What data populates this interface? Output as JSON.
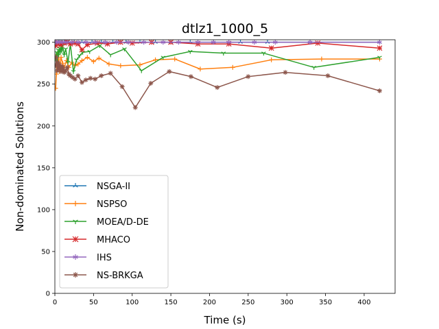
{
  "chart_data": {
    "type": "line",
    "title": "dtlz1_1000_5",
    "xlabel": "Time (s)",
    "ylabel": "Non-dominated Solutions",
    "xlim": [
      0,
      440
    ],
    "ylim": [
      0,
      303
    ],
    "xticks": [
      0,
      50,
      100,
      150,
      200,
      250,
      300,
      350,
      400
    ],
    "yticks": [
      0,
      50,
      100,
      150,
      200,
      250,
      300
    ],
    "legend_position": "lower left",
    "grid": false,
    "series": [
      {
        "name": "NSGA-II",
        "color": "#1f77b4",
        "marker": "tri-up",
        "x": [
          1,
          3,
          5,
          8,
          12,
          18,
          25,
          35,
          48,
          60,
          75,
          92,
          110,
          130,
          150,
          175,
          205,
          240,
          275,
          330,
          420
        ],
        "y": [
          297,
          299,
          300,
          300,
          300,
          300,
          300,
          300,
          300,
          300,
          300,
          300,
          300,
          300,
          300,
          300,
          300,
          300,
          300,
          300,
          300
        ]
      },
      {
        "name": "NSPSO",
        "color": "#ff7f0e",
        "marker": "plus",
        "x": [
          1,
          2,
          3,
          4,
          5,
          6,
          8,
          10,
          12,
          15,
          18,
          22,
          26,
          30,
          35,
          42,
          50,
          57,
          70,
          85,
          110,
          130,
          155,
          188,
          230,
          280,
          345,
          420
        ],
        "y": [
          245,
          262,
          285,
          270,
          280,
          265,
          282,
          275,
          270,
          278,
          270,
          276,
          272,
          274,
          278,
          282,
          277,
          281,
          274,
          272,
          273,
          279,
          280,
          268,
          270,
          279,
          280,
          280
        ]
      },
      {
        "name": "MOEA/D-DE",
        "color": "#2ca02c",
        "marker": "tri-down",
        "x": [
          1,
          2,
          3,
          4,
          5,
          6,
          7,
          8,
          9,
          10,
          12,
          14,
          17,
          20,
          24,
          28,
          32,
          36,
          45,
          58,
          72,
          90,
          112,
          140,
          175,
          218,
          270,
          335,
          420
        ],
        "y": [
          280,
          288,
          272,
          291,
          285,
          293,
          288,
          295,
          290,
          296,
          285,
          292,
          276,
          298,
          265,
          279,
          284,
          288,
          289,
          296,
          285,
          292,
          266,
          282,
          289,
          287,
          287,
          270,
          282
        ]
      },
      {
        "name": "MHACO",
        "color": "#d62728",
        "marker": "x",
        "x": [
          1,
          3,
          5,
          8,
          12,
          16,
          20,
          25,
          30,
          35,
          42,
          55,
          68,
          85,
          100,
          125,
          150,
          185,
          225,
          280,
          340,
          420
        ],
        "y": [
          296,
          298,
          299,
          297,
          299,
          300,
          298,
          299,
          298,
          291,
          297,
          299,
          298,
          300,
          299,
          300,
          300,
          298,
          298,
          293,
          299,
          293
        ]
      },
      {
        "name": "IHS",
        "color": "#9467bd",
        "marker": "star",
        "x": [
          1,
          3,
          6,
          10,
          15,
          22,
          30,
          40,
          52,
          65,
          80,
          95,
          115,
          140,
          160,
          185,
          205,
          225,
          258,
          285,
          330,
          420
        ],
        "y": [
          300,
          300,
          300,
          300,
          300,
          300,
          300,
          300,
          300,
          300,
          300,
          300,
          300,
          300,
          300,
          300,
          300,
          300,
          300,
          300,
          300,
          300
        ]
      },
      {
        "name": "NS-BRKGA",
        "color": "#8c564b",
        "marker": "asterisk",
        "x": [
          1,
          2,
          3,
          4,
          5,
          6,
          7,
          8,
          9,
          10,
          11,
          12,
          14,
          16,
          18,
          20,
          23,
          26,
          30,
          35,
          40,
          46,
          52,
          60,
          72,
          87,
          104,
          124,
          148,
          176,
          210,
          250,
          298,
          353,
          420
        ],
        "y": [
          272,
          282,
          266,
          276,
          269,
          273,
          268,
          265,
          271,
          270,
          267,
          264,
          266,
          270,
          262,
          260,
          258,
          256,
          260,
          252,
          255,
          257,
          256,
          260,
          263,
          247,
          222,
          251,
          265,
          259,
          246,
          259,
          264,
          260,
          242
        ]
      }
    ]
  }
}
